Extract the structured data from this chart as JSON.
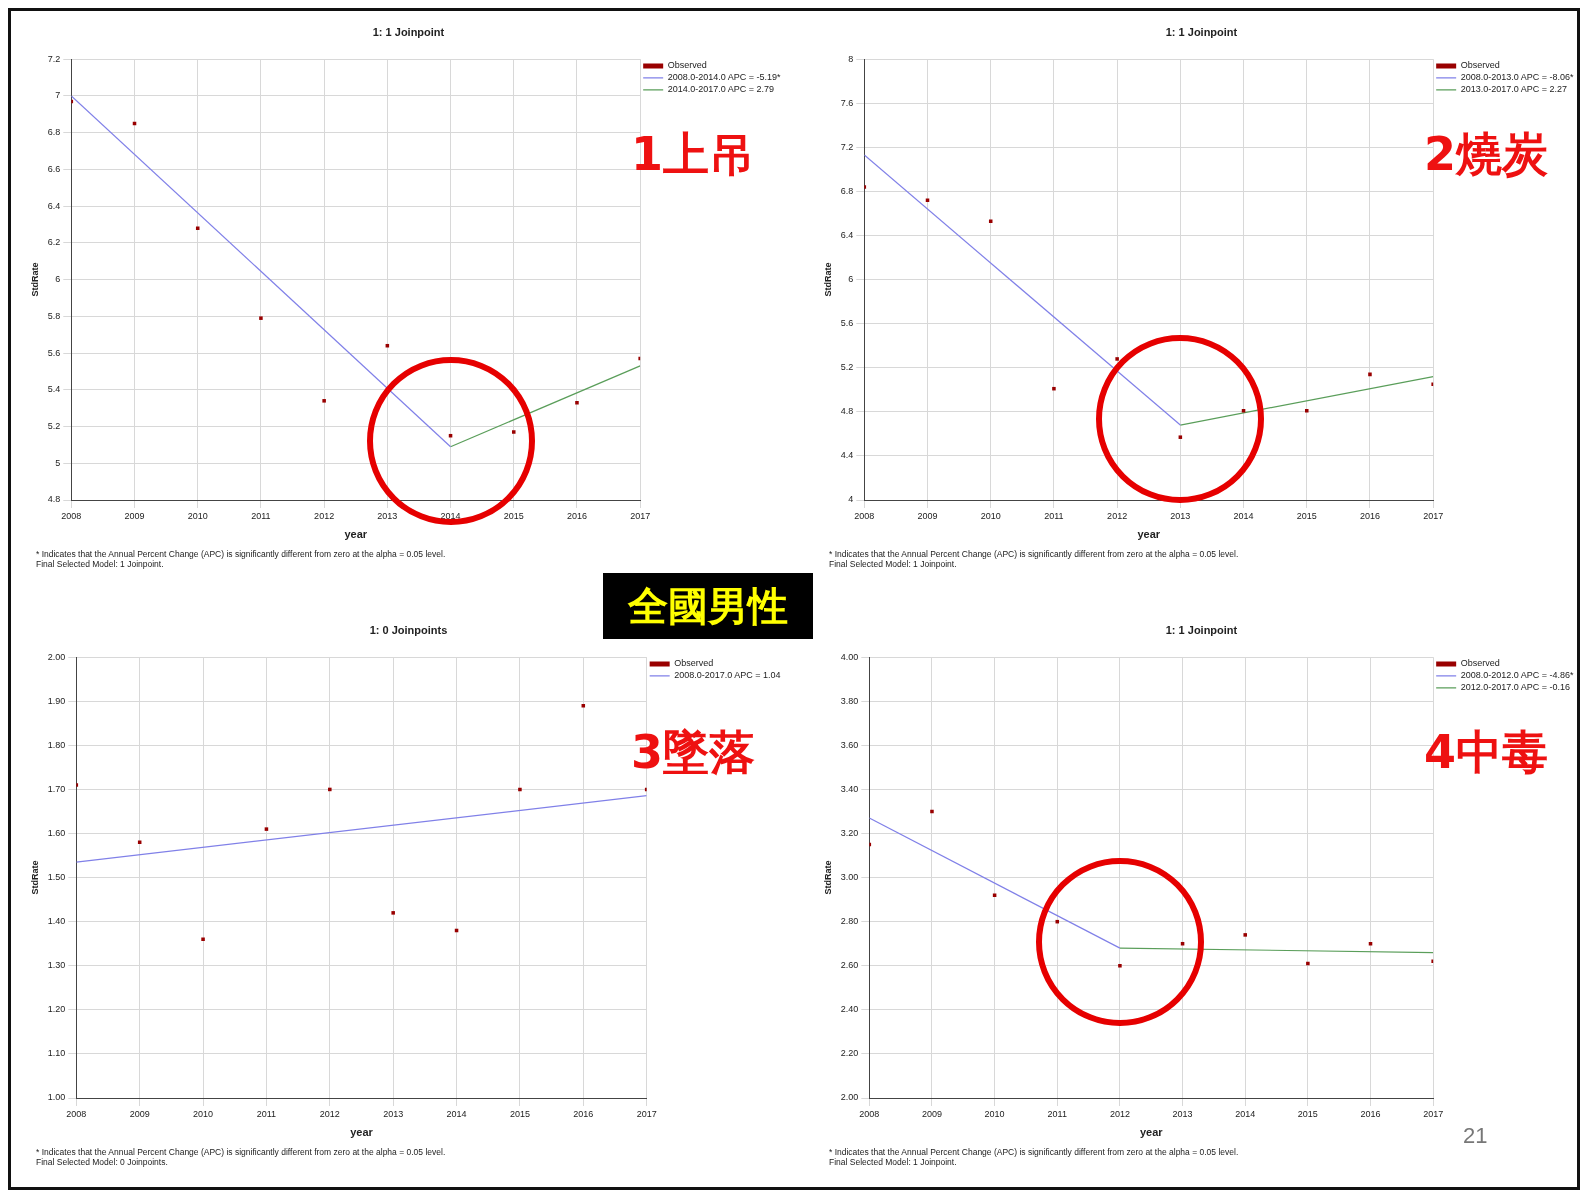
{
  "chart_data": [
    {
      "type": "scatter",
      "title": "1: 1 Joinpoint",
      "xlabel": "year",
      "ylabel": "StdRate",
      "xlim": [
        2008,
        2017
      ],
      "xticks": [
        2008,
        2009,
        2010,
        2011,
        2012,
        2013,
        2014,
        2015,
        2016,
        2017
      ],
      "ylim": [
        4.8,
        7.2
      ],
      "yticks": [
        4.8,
        5,
        5.2,
        5.4,
        5.6,
        5.8,
        6,
        6.2,
        6.4,
        6.6,
        6.8,
        7,
        7.2
      ],
      "grid": true,
      "legend": "top right",
      "series": [
        {
          "name": "Observed",
          "type": "scatter",
          "marker": "square",
          "color": "#990000",
          "x": [
            2008,
            2009,
            2010,
            2011,
            2012,
            2013,
            2014,
            2015,
            2016,
            2017
          ],
          "values": [
            6.97,
            6.85,
            6.28,
            5.79,
            5.34,
            5.64,
            5.15,
            5.17,
            5.33,
            5.57
          ]
        },
        {
          "name": "2008.0-2014.0 APC = -5.19*",
          "type": "line",
          "marker": "none",
          "color": "#8080e8",
          "x": [
            2008,
            2014
          ],
          "values": [
            7.0,
            5.09
          ]
        },
        {
          "name": "2014.0-2017.0 APC = 2.79",
          "type": "line",
          "marker": "none",
          "color": "#5a9e5a",
          "x": [
            2014,
            2017
          ],
          "values": [
            5.09,
            5.53
          ]
        }
      ],
      "annotations": [
        "* Indicates that the Annual Percent Change (APC) is significantly different from zero at the alpha = 0.05 level.",
        "Final Selected Model: 1 Joinpoint.",
        "1上吊",
        "全國男性"
      ]
    },
    {
      "type": "scatter",
      "title": "1: 1 Joinpoint",
      "xlabel": "year",
      "ylabel": "StdRate",
      "xlim": [
        2008,
        2017
      ],
      "xticks": [
        2008,
        2009,
        2010,
        2011,
        2012,
        2013,
        2014,
        2015,
        2016,
        2017
      ],
      "ylim": [
        4,
        8
      ],
      "yticks": [
        4,
        4.4,
        4.8,
        5.2,
        5.6,
        6,
        6.4,
        6.8,
        7.2,
        7.6,
        8
      ],
      "grid": true,
      "legend": "top right",
      "series": [
        {
          "name": "Observed",
          "type": "scatter",
          "marker": "square",
          "color": "#990000",
          "x": [
            2008,
            2009,
            2010,
            2011,
            2012,
            2013,
            2014,
            2015,
            2016,
            2017
          ],
          "values": [
            6.84,
            6.72,
            6.53,
            5.01,
            5.28,
            4.57,
            4.81,
            4.81,
            5.14,
            5.05
          ]
        },
        {
          "name": "2008.0-2013.0 APC = -8.06*",
          "type": "line",
          "marker": "none",
          "color": "#8080e8",
          "x": [
            2008,
            2013
          ],
          "values": [
            7.13,
            4.68
          ]
        },
        {
          "name": "2013.0-2017.0 APC = 2.27",
          "type": "line",
          "marker": "none",
          "color": "#5a9e5a",
          "x": [
            2013,
            2017
          ],
          "values": [
            4.68,
            5.12
          ]
        }
      ],
      "annotations": [
        "* Indicates that the Annual Percent Change (APC) is significantly different from zero at the alpha = 0.05 level.",
        "Final Selected Model: 1 Joinpoint.",
        "2燒炭"
      ]
    },
    {
      "type": "scatter",
      "title": "1: 0 Joinpoints",
      "xlabel": "year",
      "ylabel": "StdRate",
      "xlim": [
        2008,
        2017
      ],
      "xticks": [
        2008,
        2009,
        2010,
        2011,
        2012,
        2013,
        2014,
        2015,
        2016,
        2017
      ],
      "ylim": [
        1,
        2
      ],
      "yticks": [
        {
          "value": 1,
          "label": "1.00"
        },
        {
          "value": 1.1,
          "label": "1.10"
        },
        {
          "value": 1.2,
          "label": "1.20"
        },
        {
          "value": 1.3,
          "label": "1.30"
        },
        {
          "value": 1.4,
          "label": "1.40"
        },
        {
          "value": 1.5,
          "label": "1.50"
        },
        {
          "value": 1.6,
          "label": "1.60"
        },
        {
          "value": 1.7,
          "label": "1.70"
        },
        {
          "value": 1.8,
          "label": "1.80"
        },
        {
          "value": 1.9,
          "label": "1.90"
        },
        {
          "value": 2,
          "label": "2.00"
        }
      ],
      "grid": true,
      "legend": "top right",
      "series": [
        {
          "name": "Observed",
          "type": "scatter",
          "marker": "square",
          "color": "#990000",
          "x": [
            2008,
            2009,
            2010,
            2011,
            2012,
            2013,
            2014,
            2015,
            2016,
            2017
          ],
          "values": [
            1.71,
            1.58,
            1.36,
            1.61,
            1.7,
            1.42,
            1.38,
            1.7,
            1.89,
            1.7
          ]
        },
        {
          "name": "2008.0-2017.0 APC = 1.04",
          "type": "line",
          "marker": "none",
          "color": "#8080e8",
          "x": [
            2008,
            2017
          ],
          "values": [
            1.535,
            1.686
          ]
        }
      ],
      "annotations": [
        "* Indicates that the Annual Percent Change (APC) is significantly different from zero at the alpha = 0.05 level.",
        "Final Selected Model: 0 Joinpoints.",
        "3墜落"
      ]
    },
    {
      "type": "scatter",
      "title": "1: 1 Joinpoint",
      "xlabel": "year",
      "ylabel": "StdRate",
      "xlim": [
        2008,
        2017
      ],
      "xticks": [
        2008,
        2009,
        2010,
        2011,
        2012,
        2013,
        2014,
        2015,
        2016,
        2017
      ],
      "ylim": [
        2,
        4
      ],
      "yticks": [
        {
          "value": 2,
          "label": "2.00"
        },
        {
          "value": 2.2,
          "label": "2.20"
        },
        {
          "value": 2.4,
          "label": "2.40"
        },
        {
          "value": 2.6,
          "label": "2.60"
        },
        {
          "value": 2.8,
          "label": "2.80"
        },
        {
          "value": 3,
          "label": "3.00"
        },
        {
          "value": 3.2,
          "label": "3.20"
        },
        {
          "value": 3.4,
          "label": "3.40"
        },
        {
          "value": 3.6,
          "label": "3.60"
        },
        {
          "value": 3.8,
          "label": "3.80"
        },
        {
          "value": 4,
          "label": "4.00"
        }
      ],
      "grid": true,
      "legend": "top right",
      "series": [
        {
          "name": "Observed",
          "type": "scatter",
          "marker": "square",
          "color": "#990000",
          "x": [
            2008,
            2009,
            2010,
            2011,
            2012,
            2013,
            2014,
            2015,
            2016,
            2017
          ],
          "values": [
            3.15,
            3.3,
            2.92,
            2.8,
            2.6,
            2.7,
            2.74,
            2.61,
            2.7,
            2.62
          ]
        },
        {
          "name": "2008.0-2012.0 APC = -4.86*",
          "type": "line",
          "marker": "none",
          "color": "#8080e8",
          "x": [
            2008,
            2012
          ],
          "values": [
            3.27,
            2.68
          ]
        },
        {
          "name": "2012.0-2017.0 APC = -0.16",
          "type": "line",
          "marker": "none",
          "color": "#5a9e5a",
          "x": [
            2012,
            2017
          ],
          "values": [
            2.68,
            2.66
          ]
        }
      ],
      "annotations": [
        "* Indicates that the Annual Percent Change (APC) is significantly different from zero at the alpha = 0.05 level.",
        "Final Selected Model: 1 Joinpoint.",
        "4中毒",
        "21"
      ]
    }
  ]
}
